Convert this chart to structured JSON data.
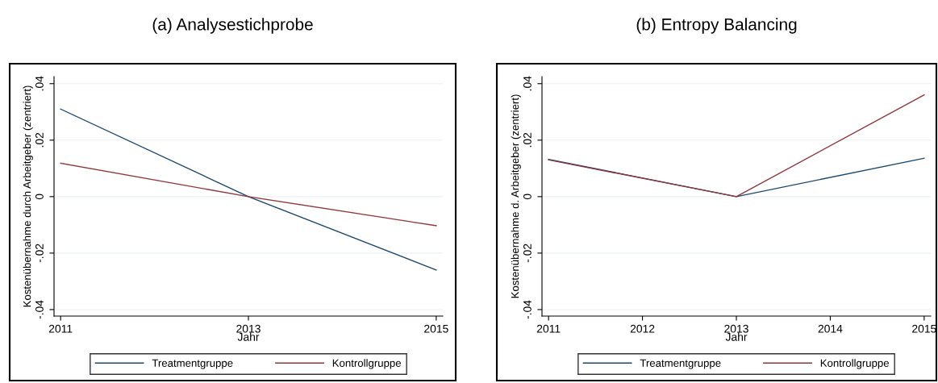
{
  "chart_data": [
    {
      "type": "line",
      "title": "(a) Analysestichprobe",
      "xlabel": "Jahr",
      "ylabel": "Kostenübernahme durch Arbeitgeber (zentriert)",
      "x": [
        2011,
        2013,
        2015
      ],
      "series": [
        {
          "name": "Treatmentgruppe",
          "color": "#1a476f",
          "values": [
            0.031,
            0,
            -0.026
          ]
        },
        {
          "name": "Kontrollgruppe",
          "color": "#90353b",
          "values": [
            0.0118,
            0,
            -0.0103
          ]
        }
      ],
      "xlim": [
        2010.93,
        2015.07
      ],
      "xticks": [
        2011,
        2013,
        2015
      ],
      "ylim": [
        -0.0423,
        0.0425
      ],
      "yticks": [
        {
          "value": -0.04,
          "label": "-.04"
        },
        {
          "value": -0.02,
          "label": "-.02"
        },
        {
          "value": 0,
          "label": "0"
        },
        {
          "value": 0.02,
          "label": ".02"
        },
        {
          "value": 0.04,
          "label": ".04"
        }
      ],
      "grid": "y",
      "legend": "bottom",
      "line_style": "solid",
      "marker": "none"
    },
    {
      "type": "line",
      "title": "(b) Entropy Balancing",
      "xlabel": "Jahr",
      "ylabel": "Kostenübernahme d. Arbeitgeber (zentriert)",
      "x": [
        2011,
        2013,
        2015
      ],
      "series": [
        {
          "name": "Treatmentgruppe",
          "color": "#1a476f",
          "values": [
            0.0132,
            0,
            0.0136
          ]
        },
        {
          "name": "Kontrollgruppe",
          "color": "#90353b",
          "values": [
            0.013,
            0,
            0.036
          ]
        }
      ],
      "xlim": [
        2010.93,
        2015.07
      ],
      "xticks": [
        2011,
        2012,
        2013,
        2014,
        2015
      ],
      "ylim": [
        -0.0423,
        0.0425
      ],
      "yticks": [
        {
          "value": -0.04,
          "label": "-.04"
        },
        {
          "value": -0.02,
          "label": "-.02"
        },
        {
          "value": 0,
          "label": "0"
        },
        {
          "value": 0.02,
          "label": ".02"
        },
        {
          "value": 0.04,
          "label": ".04"
        }
      ],
      "grid": "y",
      "legend": "bottom",
      "line_style": "solid",
      "marker": "none"
    }
  ]
}
